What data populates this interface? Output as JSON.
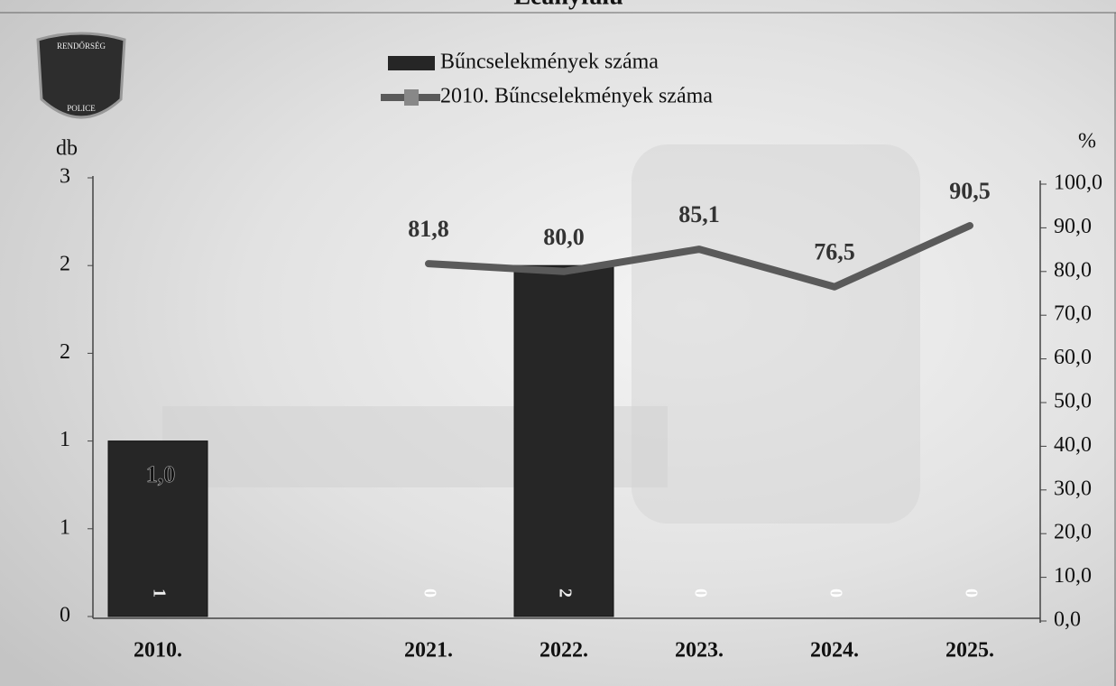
{
  "logo": {
    "top": "RENDŐRSÉG",
    "bottom": "POLICE"
  },
  "chart_data": {
    "type": "bar_line",
    "title": "Leányfalu",
    "ylabel": "db",
    "y2label": "%",
    "categories": [
      "2010.",
      null,
      "2021.",
      "2022.",
      "2023.",
      "2024.",
      "2025."
    ],
    "series": [
      {
        "name": "Bűncselekmények száma",
        "type": "bar",
        "color": "#262626",
        "values": [
          1,
          null,
          0,
          2,
          0,
          0,
          0
        ]
      },
      {
        "name": "2010. Bűncselekmények száma",
        "type": "line",
        "axis": "y2",
        "color": "#5a5a5a",
        "values": [
          null,
          null,
          81.8,
          80.0,
          85.1,
          76.5,
          90.5
        ],
        "value_labels": [
          null,
          null,
          "81,8",
          "80,0",
          "85,1",
          "76,5",
          "90,5"
        ]
      }
    ],
    "annotations": [
      "1,0"
    ],
    "ylim": [
      0,
      2.5
    ],
    "yticks": [
      0,
      {
        "value": 0.5,
        "label": "1"
      },
      1,
      {
        "value": 1.5,
        "label": "2"
      },
      2,
      {
        "value": 2.5,
        "label": "3"
      }
    ],
    "y2lim": [
      0,
      100
    ],
    "y2ticks": [
      {
        "value": 0,
        "label": "0,0"
      },
      {
        "value": 10,
        "label": "10,0"
      },
      {
        "value": 20,
        "label": "20,0"
      },
      {
        "value": 30,
        "label": "30,0"
      },
      {
        "value": 40,
        "label": "40,0"
      },
      {
        "value": 50,
        "label": "50,0"
      },
      {
        "value": 60,
        "label": "60,0"
      },
      {
        "value": 70,
        "label": "70,0"
      },
      {
        "value": 80,
        "label": "80,0"
      },
      {
        "value": 90,
        "label": "90,0"
      },
      {
        "value": 100,
        "label": "100,0"
      }
    ],
    "legend": "top"
  }
}
